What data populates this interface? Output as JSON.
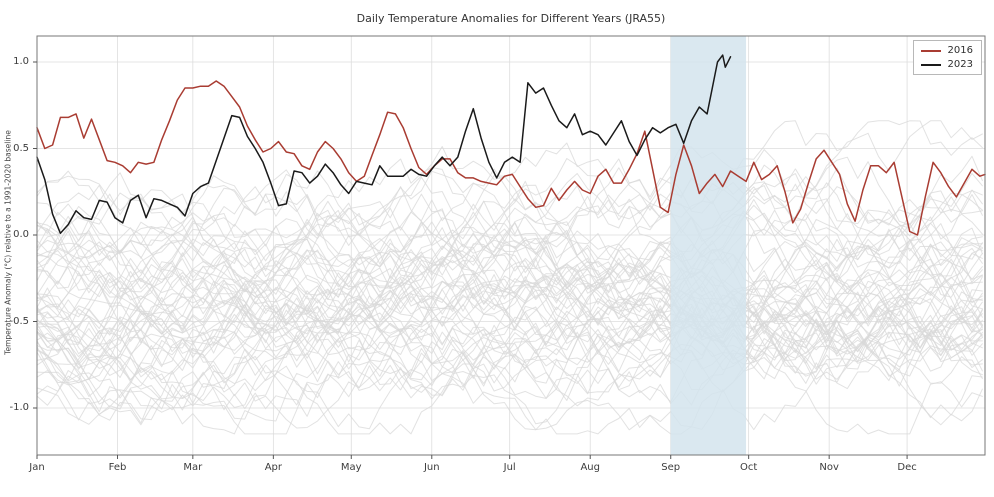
{
  "figure": {
    "title": "Daily Temperature Anomalies for Different Years (JRA55)",
    "ylabel": "Temperature Anomaly (°C) relative to a 1991-2020 baseline"
  },
  "chart_data": {
    "type": "line",
    "title": "Daily Temperature Anomalies for Different Years (JRA55)",
    "xlabel": "",
    "ylabel": "Temperature Anomaly (°C) relative to a 1991-2020 baseline",
    "x_unit": "day_of_year",
    "xlim": [
      1,
      366
    ],
    "ylim": [
      -1.25,
      1.15
    ],
    "grid": true,
    "legend_position": "upper right",
    "x_ticks": [
      "Jan",
      "Feb",
      "Mar",
      "Apr",
      "May",
      "Jun",
      "Jul",
      "Aug",
      "Sep",
      "Oct",
      "Nov",
      "Dec"
    ],
    "x_tick_days": [
      1,
      32,
      61,
      92,
      122,
      153,
      183,
      214,
      245,
      275,
      306,
      336
    ],
    "y_ticks": [
      "1.0",
      "0.5",
      "0.0",
      "-0.5",
      "-1.0"
    ],
    "y_tick_values": [
      1.0,
      0.5,
      0.0,
      -0.5,
      -1.0
    ],
    "highlight_band": {
      "label": "September",
      "start_day": 245,
      "end_day": 274,
      "color": "#d3e4ed",
      "opacity": 0.85
    },
    "background_series": {
      "description": "other years (unlabeled grey lines)",
      "count": 60,
      "color": "#d8d8d8",
      "opacity": 0.75,
      "seed": 11,
      "value_range": [
        -1.15,
        0.66
      ]
    },
    "series": [
      {
        "name": "2016",
        "color": "#a93c32",
        "width": 1.5,
        "points": [
          [
            1,
            0.62
          ],
          [
            4,
            0.5
          ],
          [
            7,
            0.52
          ],
          [
            10,
            0.68
          ],
          [
            13,
            0.68
          ],
          [
            16,
            0.7
          ],
          [
            19,
            0.56
          ],
          [
            22,
            0.67
          ],
          [
            25,
            0.55
          ],
          [
            28,
            0.43
          ],
          [
            31,
            0.42
          ],
          [
            34,
            0.4
          ],
          [
            37,
            0.36
          ],
          [
            40,
            0.42
          ],
          [
            43,
            0.41
          ],
          [
            46,
            0.42
          ],
          [
            49,
            0.55
          ],
          [
            52,
            0.66
          ],
          [
            55,
            0.78
          ],
          [
            58,
            0.85
          ],
          [
            61,
            0.85
          ],
          [
            64,
            0.86
          ],
          [
            67,
            0.86
          ],
          [
            70,
            0.89
          ],
          [
            73,
            0.86
          ],
          [
            76,
            0.8
          ],
          [
            79,
            0.74
          ],
          [
            82,
            0.63
          ],
          [
            85,
            0.55
          ],
          [
            88,
            0.48
          ],
          [
            91,
            0.5
          ],
          [
            94,
            0.54
          ],
          [
            97,
            0.48
          ],
          [
            100,
            0.47
          ],
          [
            103,
            0.4
          ],
          [
            106,
            0.38
          ],
          [
            109,
            0.48
          ],
          [
            112,
            0.54
          ],
          [
            115,
            0.5
          ],
          [
            118,
            0.44
          ],
          [
            121,
            0.36
          ],
          [
            124,
            0.31
          ],
          [
            127,
            0.34
          ],
          [
            130,
            0.46
          ],
          [
            133,
            0.58
          ],
          [
            136,
            0.71
          ],
          [
            139,
            0.7
          ],
          [
            142,
            0.62
          ],
          [
            145,
            0.5
          ],
          [
            148,
            0.39
          ],
          [
            151,
            0.35
          ],
          [
            154,
            0.4
          ],
          [
            157,
            0.44
          ],
          [
            160,
            0.44
          ],
          [
            163,
            0.36
          ],
          [
            166,
            0.33
          ],
          [
            169,
            0.33
          ],
          [
            172,
            0.31
          ],
          [
            175,
            0.3
          ],
          [
            178,
            0.29
          ],
          [
            181,
            0.34
          ],
          [
            184,
            0.35
          ],
          [
            187,
            0.28
          ],
          [
            190,
            0.21
          ],
          [
            193,
            0.16
          ],
          [
            196,
            0.17
          ],
          [
            199,
            0.27
          ],
          [
            202,
            0.2
          ],
          [
            205,
            0.26
          ],
          [
            208,
            0.31
          ],
          [
            211,
            0.26
          ],
          [
            214,
            0.24
          ],
          [
            217,
            0.34
          ],
          [
            220,
            0.38
          ],
          [
            223,
            0.3
          ],
          [
            226,
            0.3
          ],
          [
            229,
            0.38
          ],
          [
            232,
            0.47
          ],
          [
            235,
            0.6
          ],
          [
            238,
            0.38
          ],
          [
            241,
            0.16
          ],
          [
            244,
            0.13
          ],
          [
            247,
            0.35
          ],
          [
            250,
            0.52
          ],
          [
            253,
            0.4
          ],
          [
            256,
            0.24
          ],
          [
            259,
            0.3
          ],
          [
            262,
            0.35
          ],
          [
            265,
            0.28
          ],
          [
            268,
            0.37
          ],
          [
            271,
            0.34
          ],
          [
            274,
            0.31
          ],
          [
            277,
            0.42
          ],
          [
            280,
            0.32
          ],
          [
            283,
            0.35
          ],
          [
            286,
            0.4
          ],
          [
            289,
            0.25
          ],
          [
            292,
            0.07
          ],
          [
            295,
            0.15
          ],
          [
            298,
            0.3
          ],
          [
            301,
            0.44
          ],
          [
            304,
            0.49
          ],
          [
            307,
            0.42
          ],
          [
            310,
            0.35
          ],
          [
            313,
            0.18
          ],
          [
            316,
            0.08
          ],
          [
            319,
            0.26
          ],
          [
            322,
            0.4
          ],
          [
            325,
            0.4
          ],
          [
            328,
            0.36
          ],
          [
            331,
            0.42
          ],
          [
            334,
            0.22
          ],
          [
            337,
            0.02
          ],
          [
            340,
            0.0
          ],
          [
            343,
            0.22
          ],
          [
            346,
            0.42
          ],
          [
            349,
            0.36
          ],
          [
            352,
            0.28
          ],
          [
            355,
            0.22
          ],
          [
            358,
            0.3
          ],
          [
            361,
            0.38
          ],
          [
            364,
            0.34
          ],
          [
            366,
            0.35
          ]
        ]
      },
      {
        "name": "2023",
        "color": "#1a1a1a",
        "width": 1.5,
        "points": [
          [
            1,
            0.45
          ],
          [
            4,
            0.32
          ],
          [
            7,
            0.12
          ],
          [
            10,
            0.01
          ],
          [
            13,
            0.06
          ],
          [
            16,
            0.14
          ],
          [
            19,
            0.1
          ],
          [
            22,
            0.09
          ],
          [
            25,
            0.2
          ],
          [
            28,
            0.19
          ],
          [
            31,
            0.1
          ],
          [
            34,
            0.07
          ],
          [
            37,
            0.2
          ],
          [
            40,
            0.23
          ],
          [
            43,
            0.1
          ],
          [
            46,
            0.21
          ],
          [
            49,
            0.2
          ],
          [
            52,
            0.18
          ],
          [
            55,
            0.16
          ],
          [
            58,
            0.11
          ],
          [
            61,
            0.24
          ],
          [
            64,
            0.28
          ],
          [
            67,
            0.3
          ],
          [
            70,
            0.43
          ],
          [
            73,
            0.56
          ],
          [
            76,
            0.69
          ],
          [
            79,
            0.68
          ],
          [
            82,
            0.57
          ],
          [
            85,
            0.5
          ],
          [
            88,
            0.42
          ],
          [
            91,
            0.3
          ],
          [
            94,
            0.17
          ],
          [
            97,
            0.18
          ],
          [
            100,
            0.37
          ],
          [
            103,
            0.36
          ],
          [
            106,
            0.3
          ],
          [
            109,
            0.34
          ],
          [
            112,
            0.41
          ],
          [
            115,
            0.36
          ],
          [
            118,
            0.29
          ],
          [
            121,
            0.24
          ],
          [
            124,
            0.31
          ],
          [
            127,
            0.3
          ],
          [
            130,
            0.29
          ],
          [
            133,
            0.4
          ],
          [
            136,
            0.34
          ],
          [
            139,
            0.34
          ],
          [
            142,
            0.34
          ],
          [
            145,
            0.38
          ],
          [
            148,
            0.35
          ],
          [
            151,
            0.34
          ],
          [
            154,
            0.4
          ],
          [
            157,
            0.45
          ],
          [
            160,
            0.4
          ],
          [
            163,
            0.45
          ],
          [
            166,
            0.6
          ],
          [
            169,
            0.73
          ],
          [
            172,
            0.56
          ],
          [
            175,
            0.42
          ],
          [
            178,
            0.33
          ],
          [
            181,
            0.42
          ],
          [
            184,
            0.45
          ],
          [
            187,
            0.42
          ],
          [
            190,
            0.88
          ],
          [
            193,
            0.82
          ],
          [
            196,
            0.85
          ],
          [
            199,
            0.75
          ],
          [
            202,
            0.66
          ],
          [
            205,
            0.62
          ],
          [
            208,
            0.7
          ],
          [
            211,
            0.58
          ],
          [
            214,
            0.6
          ],
          [
            217,
            0.58
          ],
          [
            220,
            0.52
          ],
          [
            223,
            0.59
          ],
          [
            226,
            0.66
          ],
          [
            229,
            0.54
          ],
          [
            232,
            0.46
          ],
          [
            235,
            0.55
          ],
          [
            238,
            0.62
          ],
          [
            241,
            0.59
          ],
          [
            244,
            0.62
          ],
          [
            247,
            0.64
          ],
          [
            250,
            0.53
          ],
          [
            253,
            0.66
          ],
          [
            256,
            0.74
          ],
          [
            259,
            0.7
          ],
          [
            261,
            0.85
          ],
          [
            263,
            1.0
          ],
          [
            265,
            1.04
          ],
          [
            266,
            0.97
          ],
          [
            268,
            1.03
          ]
        ]
      }
    ]
  }
}
